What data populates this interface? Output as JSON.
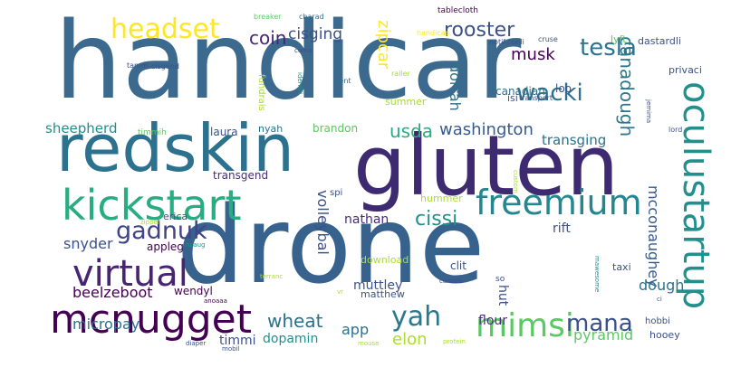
{
  "palette": {
    "dark_purple": "#440154",
    "purple": "#472c7a",
    "indigo": "#3b518b",
    "blue": "#2c718e",
    "teal": "#21908d",
    "green_teal": "#27ad81",
    "green": "#5cc863",
    "lime": "#aadc32",
    "yellow": "#fde725"
  },
  "words": [
    {
      "text": "handicar",
      "color": "#3b6a8e"
    },
    {
      "text": "drone",
      "color": "#37628e"
    },
    {
      "text": "gluten",
      "color": "#3e2a70"
    },
    {
      "text": "redskin",
      "color": "#2c718e"
    },
    {
      "text": "kickstart",
      "color": "#27ad81"
    },
    {
      "text": "freemium",
      "color": "#24868e"
    },
    {
      "text": "oculustartup",
      "color": "#21908d"
    },
    {
      "text": "virtual",
      "color": "#482475"
    },
    {
      "text": "mcnugget",
      "color": "#440154"
    },
    {
      "text": "mimsi",
      "color": "#5cc863"
    },
    {
      "text": "headset",
      "color": "#fde725"
    },
    {
      "text": "gadnuk",
      "color": "#414487"
    },
    {
      "text": "yah",
      "color": "#2a788e"
    },
    {
      "text": "wacki",
      "color": "#2c718e"
    },
    {
      "text": "tesla",
      "color": "#2c728e"
    },
    {
      "text": "mana",
      "color": "#3b518b"
    },
    {
      "text": "rooster",
      "color": "#3b518b"
    },
    {
      "text": "coin",
      "color": "#482475"
    },
    {
      "text": "canadough",
      "color": "#2a788e"
    },
    {
      "text": "mcconaughey",
      "color": "#38598c"
    },
    {
      "text": "cissi",
      "color": "#21908d"
    },
    {
      "text": "washington",
      "color": "#365c8d"
    },
    {
      "text": "usda",
      "color": "#27ad81"
    },
    {
      "text": "zipcar",
      "color": "#fde725"
    },
    {
      "text": "cisging",
      "color": "#3b518b"
    },
    {
      "text": "musk",
      "color": "#440154"
    },
    {
      "text": "dorrah",
      "color": "#2c718e"
    },
    {
      "text": "elon",
      "color": "#aadc32"
    },
    {
      "text": "wheat",
      "color": "#2c718e"
    },
    {
      "text": "volleybal",
      "color": "#3b518b"
    },
    {
      "text": "beelzeboot",
      "color": "#440154"
    },
    {
      "text": "micropay",
      "color": "#2c718e"
    },
    {
      "text": "pyramid",
      "color": "#5cc863"
    },
    {
      "text": "transging",
      "color": "#2c718e"
    },
    {
      "text": "snyder",
      "color": "#3b518b"
    },
    {
      "text": "sheepherd",
      "color": "#21908d"
    },
    {
      "text": "nathan",
      "color": "#472c7a"
    },
    {
      "text": "app",
      "color": "#2c718e"
    },
    {
      "text": "dopamin",
      "color": "#21908d"
    },
    {
      "text": "timmi",
      "color": "#3b518b"
    },
    {
      "text": "hut",
      "color": "#3b518b"
    },
    {
      "text": "flour",
      "color": "#472c7a"
    },
    {
      "text": "muttley",
      "color": "#3b518b"
    },
    {
      "text": "dough",
      "color": "#2c718e"
    },
    {
      "text": "rift",
      "color": "#3b518b"
    },
    {
      "text": "laura",
      "color": "#3b518b"
    },
    {
      "text": "brandon",
      "color": "#5cc863"
    },
    {
      "text": "nyah",
      "color": "#2c718e"
    },
    {
      "text": "appleg",
      "color": "#440154"
    },
    {
      "text": "wendyl",
      "color": "#440154"
    },
    {
      "text": "transgend",
      "color": "#472c7a"
    },
    {
      "text": "canadian",
      "color": "#2c718e"
    },
    {
      "text": "loo",
      "color": "#3b518b"
    },
    {
      "text": "isi",
      "color": "#3b518b"
    },
    {
      "text": "summer",
      "color": "#aadc32"
    },
    {
      "text": "hooey",
      "color": "#3b518b"
    },
    {
      "text": "clit",
      "color": "#3b518b"
    },
    {
      "text": "taxi",
      "color": "#3b518b"
    },
    {
      "text": "matthew",
      "color": "#3b518b"
    },
    {
      "text": "download",
      "color": "#aadc32"
    },
    {
      "text": "hummer",
      "color": "#aadc32"
    },
    {
      "text": "erica",
      "color": "#3b518b"
    },
    {
      "text": "spi",
      "color": "#3b518b"
    },
    {
      "text": "fundrais",
      "color": "#aadc32"
    },
    {
      "text": "dastardli",
      "color": "#3b518b"
    },
    {
      "text": "lyft",
      "color": "#5cc863"
    },
    {
      "text": "privaci",
      "color": "#3b518b"
    },
    {
      "text": "transport",
      "color": "#3b518b"
    },
    {
      "text": "tablecloth",
      "color": "#440154"
    },
    {
      "text": "handicap",
      "color": "#fde725"
    },
    {
      "text": "notif",
      "color": "#3b518b"
    },
    {
      "text": "conli",
      "color": "#3b518b"
    },
    {
      "text": "cruse",
      "color": "#3b518b"
    },
    {
      "text": "breaker",
      "color": "#5cc863"
    },
    {
      "text": "charad",
      "color": "#2c718e"
    },
    {
      "text": "coma",
      "color": "#3b518b"
    },
    {
      "text": "identifi",
      "color": "#21908d"
    },
    {
      "text": "cent",
      "color": "#2c718e"
    },
    {
      "text": "railer",
      "color": "#aadc32"
    },
    {
      "text": "cisgend",
      "color": "#3b518b"
    },
    {
      "text": "tamm",
      "color": "#3b518b"
    },
    {
      "text": "timmih",
      "color": "#5cc863"
    },
    {
      "text": "hobbi",
      "color": "#3b518b"
    },
    {
      "text": "jemima",
      "color": "#3b518b"
    },
    {
      "text": "lord",
      "color": "#3b518b"
    },
    {
      "text": "custom",
      "color": "#aadc32"
    },
    {
      "text": "zipper",
      "color": "#aadc32"
    },
    {
      "text": "ncaug",
      "color": "#21908d"
    },
    {
      "text": "so",
      "color": "#3b518b"
    },
    {
      "text": "canada",
      "color": "#3b518b"
    },
    {
      "text": "terranc",
      "color": "#aadc32"
    },
    {
      "text": "mobil",
      "color": "#3b518b"
    },
    {
      "text": "diaper",
      "color": "#3b518b"
    },
    {
      "text": "protein",
      "color": "#aadc32"
    },
    {
      "text": "mouse",
      "color": "#aadc32"
    },
    {
      "text": "anoaaa",
      "color": "#440154"
    },
    {
      "text": "mawesome",
      "color": "#21908d"
    },
    {
      "text": "ci",
      "color": "#3b518b"
    },
    {
      "text": "vr",
      "color": "#aadc32"
    }
  ]
}
